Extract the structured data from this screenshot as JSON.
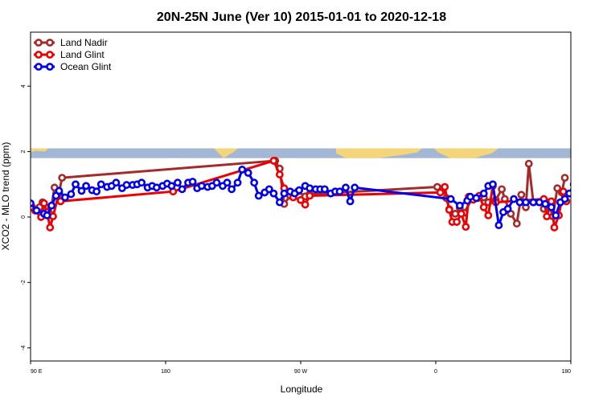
{
  "chart_data": {
    "type": "line",
    "title": "20N-25N June (Ver 10)   2015-01-01 to 2020-12-18",
    "xlabel": "Longitude",
    "ylabel": "XCO2 - MLO trend (ppm)",
    "xlim": [
      90,
      450
    ],
    "ylim": [
      -4.4,
      5.65
    ],
    "x_ticks": [
      {
        "value": 90,
        "label": "90 E"
      },
      {
        "value": 180,
        "label": "180"
      },
      {
        "value": 270,
        "label": "90 W"
      },
      {
        "value": 360,
        "label": "0"
      },
      {
        "value": 450,
        "label": "180"
      }
    ],
    "x_ticks_extra": [
      {
        "value": 450,
        "label": "90 E"
      }
    ],
    "y_ticks": [
      -4,
      -2,
      0,
      2,
      4
    ],
    "map_band": {
      "y_low": 1.8,
      "y_high": 2.1,
      "ocean_color": "#a3b7d5",
      "land_color": "#f5d57a"
    },
    "legend": {
      "position": "top-left"
    },
    "series": [
      {
        "name": "Land Nadir",
        "color": "#a52a2a",
        "points": [
          [
            91,
            0.3
          ],
          [
            96,
            0.3
          ],
          [
            98,
            0.45
          ],
          [
            100,
            0.3
          ],
          [
            103,
            0.08
          ],
          [
            106,
            0.9
          ],
          [
            109,
            0.75
          ],
          [
            111,
            1.2
          ],
          [
            253,
            1.72
          ],
          [
            256,
            1.48
          ],
          [
            259,
            0.4
          ],
          [
            263,
            0.65
          ],
          [
            268,
            0.78
          ],
          [
            273,
            0.63
          ],
          [
            276,
            0.7
          ],
          [
            361,
            0.92
          ],
          [
            365,
            0.88
          ],
          [
            367,
            0.58
          ],
          [
            369,
            0.24
          ],
          [
            373,
            0.1
          ],
          [
            376,
            0.28
          ],
          [
            379,
            0.13
          ],
          [
            384,
            0.55
          ],
          [
            388,
            0.58
          ],
          [
            392,
            0.6
          ],
          [
            395,
            0.45
          ],
          [
            400,
            0.52
          ],
          [
            404,
            0.85
          ],
          [
            406,
            0.55
          ],
          [
            410,
            0.1
          ],
          [
            414,
            -0.2
          ],
          [
            417,
            0.68
          ],
          [
            420,
            0.3
          ],
          [
            422,
            1.63
          ],
          [
            425,
            0.45
          ],
          [
            429,
            0.45
          ],
          [
            432,
            0.25
          ],
          [
            435,
            0.45
          ],
          [
            438,
            0.02
          ],
          [
            441,
            0.88
          ],
          [
            444,
            0.75
          ],
          [
            446,
            1.2
          ]
        ]
      },
      {
        "name": "Land Glint",
        "color": "#ee0000",
        "points": [
          [
            91,
            0.3
          ],
          [
            93,
            0.2
          ],
          [
            97,
            0.0
          ],
          [
            99,
            0.42
          ],
          [
            101,
            0.15
          ],
          [
            103,
            -0.32
          ],
          [
            105,
            0.02
          ],
          [
            109,
            0.75
          ],
          [
            110,
            0.48
          ],
          [
            185,
            0.78
          ],
          [
            252,
            1.72
          ],
          [
            256,
            1.3
          ],
          [
            259,
            0.88
          ],
          [
            265,
            0.6
          ],
          [
            270,
            0.52
          ],
          [
            273,
            0.38
          ],
          [
            276,
            0.65
          ],
          [
            363,
            0.75
          ],
          [
            366,
            0.92
          ],
          [
            369,
            0.22
          ],
          [
            371,
            -0.15
          ],
          [
            374,
            -0.15
          ],
          [
            377,
            0.1
          ],
          [
            380,
            -0.3
          ],
          [
            382,
            0.62
          ],
          [
            385,
            0.53
          ],
          [
            389,
            0.65
          ],
          [
            392,
            0.3
          ],
          [
            395,
            0.05
          ],
          [
            398,
            0.95
          ],
          [
            400,
            0.45
          ],
          [
            432,
            0.55
          ],
          [
            434,
            0.02
          ],
          [
            437,
            0.48
          ],
          [
            439,
            -0.32
          ],
          [
            442,
            0.05
          ],
          [
            445,
            0.78
          ],
          [
            447,
            0.48
          ]
        ]
      },
      {
        "name": "Ocean Glint",
        "color": "#0000ee",
        "points": [
          [
            90,
            0.42
          ],
          [
            94,
            0.2
          ],
          [
            99,
            0.1
          ],
          [
            101,
            0.05
          ],
          [
            104,
            0.35
          ],
          [
            107,
            0.65
          ],
          [
            109,
            0.8
          ],
          [
            113,
            0.6
          ],
          [
            117,
            0.7
          ],
          [
            120,
            1.0
          ],
          [
            124,
            0.8
          ],
          [
            127,
            0.95
          ],
          [
            131,
            0.82
          ],
          [
            134,
            0.78
          ],
          [
            137,
            1.0
          ],
          [
            141,
            0.92
          ],
          [
            144,
            0.95
          ],
          [
            147,
            1.05
          ],
          [
            151,
            0.88
          ],
          [
            154,
            0.98
          ],
          [
            158,
            0.98
          ],
          [
            161,
            1.0
          ],
          [
            164,
            1.05
          ],
          [
            168,
            0.9
          ],
          [
            171,
            0.95
          ],
          [
            174,
            0.9
          ],
          [
            178,
            0.95
          ],
          [
            181,
            1.02
          ],
          [
            184,
            0.95
          ],
          [
            188,
            1.05
          ],
          [
            191,
            0.85
          ],
          [
            195,
            1.05
          ],
          [
            198,
            1.08
          ],
          [
            201,
            0.88
          ],
          [
            204,
            0.95
          ],
          [
            208,
            0.92
          ],
          [
            211,
            0.95
          ],
          [
            214,
            1.05
          ],
          [
            218,
            0.95
          ],
          [
            221,
            1.05
          ],
          [
            224,
            0.85
          ],
          [
            228,
            1.05
          ],
          [
            231,
            1.45
          ],
          [
            235,
            1.35
          ],
          [
            239,
            1.05
          ],
          [
            242,
            0.65
          ],
          [
            246,
            0.75
          ],
          [
            249,
            0.85
          ],
          [
            252,
            0.72
          ],
          [
            256,
            0.45
          ],
          [
            259,
            0.72
          ],
          [
            263,
            0.78
          ],
          [
            266,
            0.72
          ],
          [
            269,
            0.82
          ],
          [
            273,
            0.95
          ],
          [
            276,
            0.88
          ],
          [
            280,
            0.85
          ],
          [
            283,
            0.85
          ],
          [
            286,
            0.85
          ],
          [
            290,
            0.72
          ],
          [
            293,
            0.78
          ],
          [
            296,
            0.78
          ],
          [
            300,
            0.9
          ],
          [
            303,
            0.48
          ],
          [
            306,
            0.9
          ],
          [
            370,
            0.55
          ],
          [
            376,
            0.35
          ],
          [
            381,
            0.5
          ],
          [
            383,
            0.62
          ],
          [
            387,
            0.58
          ],
          [
            392,
            0.72
          ],
          [
            395,
            0.95
          ],
          [
            398,
            1.0
          ],
          [
            402,
            -0.25
          ],
          [
            405,
            0.15
          ],
          [
            408,
            0.25
          ],
          [
            412,
            0.55
          ],
          [
            416,
            0.45
          ],
          [
            420,
            0.45
          ],
          [
            425,
            0.45
          ],
          [
            429,
            0.45
          ],
          [
            433,
            0.4
          ],
          [
            437,
            0.3
          ],
          [
            440,
            0.05
          ],
          [
            443,
            0.45
          ],
          [
            446,
            0.55
          ],
          [
            449,
            0.72
          ],
          [
            452,
            1.0
          ],
          [
            456,
            0.8
          ],
          [
            459,
            0.95
          ],
          [
            463,
            0.8
          ],
          [
            466,
            0.95
          ],
          [
            469,
            0.85
          ],
          [
            473,
            0.98
          ],
          [
            476,
            1.0
          ],
          [
            479,
            0.95
          ],
          [
            482,
            1.05
          ],
          [
            485,
            0.88
          ]
        ]
      }
    ]
  }
}
